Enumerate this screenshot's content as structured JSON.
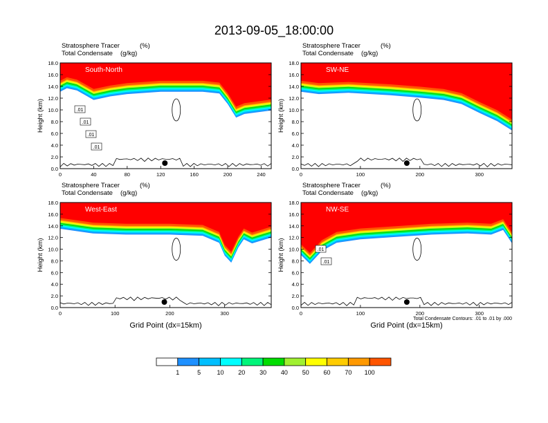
{
  "title": "2013-09-05_18:00:00",
  "colors": {
    "levels": [
      "#ffffff",
      "#1e90ff",
      "#00bfff",
      "#00ffff",
      "#00f57a",
      "#00dd00",
      "#a0f030",
      "#ffff00",
      "#ffcc00",
      "#ff9900",
      "#ff5500",
      "#ff0000"
    ]
  },
  "colorbar": {
    "labels": [
      "1",
      "5",
      "10",
      "20",
      "30",
      "40",
      "50",
      "60",
      "70",
      "100"
    ]
  },
  "chart_data": [
    {
      "type": "heatmap",
      "panel_label": "South-North",
      "title_left_1": "Stratosphere Tracer",
      "units_1": "(%)",
      "title_left_2": "Total Condensate",
      "units_2": "(g/kg)",
      "ylabel": "Height (km)",
      "xlabel": "",
      "ylim": [
        0,
        18
      ],
      "xlim": [
        0,
        252
      ],
      "yticks": [
        "0.0",
        "2.0",
        "4.0",
        "6.0",
        "8.0",
        "10.0",
        "12.0",
        "14.0",
        "16.0",
        "18.0"
      ],
      "xticks": [
        0,
        40,
        80,
        120,
        160,
        200,
        240
      ],
      "tropopause_km": [
        [
          0,
          14.6
        ],
        [
          8,
          15.2
        ],
        [
          20,
          14.8
        ],
        [
          40,
          13.2
        ],
        [
          60,
          13.8
        ],
        [
          80,
          14.2
        ],
        [
          120,
          14.6
        ],
        [
          170,
          14.6
        ],
        [
          190,
          14.3
        ],
        [
          200,
          12.5
        ],
        [
          210,
          10.2
        ],
        [
          220,
          10.8
        ],
        [
          252,
          11.4
        ]
      ],
      "contour_labels": [
        ".01",
        ".01",
        ".01",
        ".01"
      ],
      "marker_x": 125
    },
    {
      "type": "heatmap",
      "panel_label": "SW-NE",
      "title_left_1": "Stratosphere Tracer",
      "units_1": "(%)",
      "title_left_2": "Total Condensate",
      "units_2": "(g/kg)",
      "ylabel": "Height (km)",
      "xlabel": "",
      "ylim": [
        0,
        18
      ],
      "xlim": [
        0,
        355
      ],
      "yticks": [
        "0.0",
        "2.0",
        "4.0",
        "6.0",
        "8.0",
        "10.0",
        "12.0",
        "14.0",
        "16.0",
        "18.0"
      ],
      "xticks": [
        0,
        100,
        200,
        300
      ],
      "tropopause_km": [
        [
          0,
          14.6
        ],
        [
          30,
          14.2
        ],
        [
          80,
          14.4
        ],
        [
          150,
          14.0
        ],
        [
          200,
          13.6
        ],
        [
          240,
          13.2
        ],
        [
          270,
          12.5
        ],
        [
          300,
          11.0
        ],
        [
          330,
          9.6
        ],
        [
          355,
          8.0
        ]
      ],
      "contour_labels": [],
      "marker_x": 178
    },
    {
      "type": "heatmap",
      "panel_label": "West-East",
      "title_left_1": "Stratosphere Tracer",
      "units_1": "(%)",
      "title_left_2": "Total Condensate",
      "units_2": "(g/kg)",
      "ylabel": "Height (km)",
      "xlabel": "Grid Point (dx=15km)",
      "ylim": [
        0,
        18
      ],
      "xlim": [
        0,
        385
      ],
      "yticks": [
        "0.0",
        "2.0",
        "4.0",
        "6.0",
        "8.0",
        "10.0",
        "12.0",
        "14.0",
        "16.0",
        "18.0"
      ],
      "xticks": [
        0,
        100,
        200,
        300
      ],
      "tropopause_km": [
        [
          0,
          15.0
        ],
        [
          60,
          14.2
        ],
        [
          120,
          14.0
        ],
        [
          200,
          14.0
        ],
        [
          260,
          13.8
        ],
        [
          290,
          12.6
        ],
        [
          300,
          10.4
        ],
        [
          312,
          9.2
        ],
        [
          325,
          11.8
        ],
        [
          335,
          13.2
        ],
        [
          350,
          12.5
        ],
        [
          385,
          13.5
        ]
      ],
      "contour_labels": [],
      "marker_x": 190
    },
    {
      "type": "heatmap",
      "panel_label": "NW-SE",
      "title_left_1": "Stratosphere Tracer",
      "units_1": "(%)",
      "title_left_2": "Total Condensate",
      "units_2": "(g/kg)",
      "ylabel": "Height (km)",
      "xlabel": "Grid Point (dx=15km)",
      "ylim": [
        0,
        18
      ],
      "xlim": [
        0,
        355
      ],
      "yticks": [
        "0.0",
        "2.0",
        "4.0",
        "6.0",
        "8.0",
        "10.0",
        "12.0",
        "14.0",
        "16.0",
        "18.0"
      ],
      "xticks": [
        0,
        100,
        200,
        300
      ],
      "tropopause_km": [
        [
          0,
          10.5
        ],
        [
          15,
          9.0
        ],
        [
          35,
          11.2
        ],
        [
          60,
          12.6
        ],
        [
          100,
          13.2
        ],
        [
          160,
          13.6
        ],
        [
          220,
          14.0
        ],
        [
          280,
          14.2
        ],
        [
          320,
          14.0
        ],
        [
          340,
          14.8
        ],
        [
          355,
          12.5
        ]
      ],
      "contour_labels": [
        ".01",
        ".01"
      ],
      "marker_x": 178,
      "footnote": "Total Condensate Contours: .01 to .01 by .000"
    }
  ]
}
